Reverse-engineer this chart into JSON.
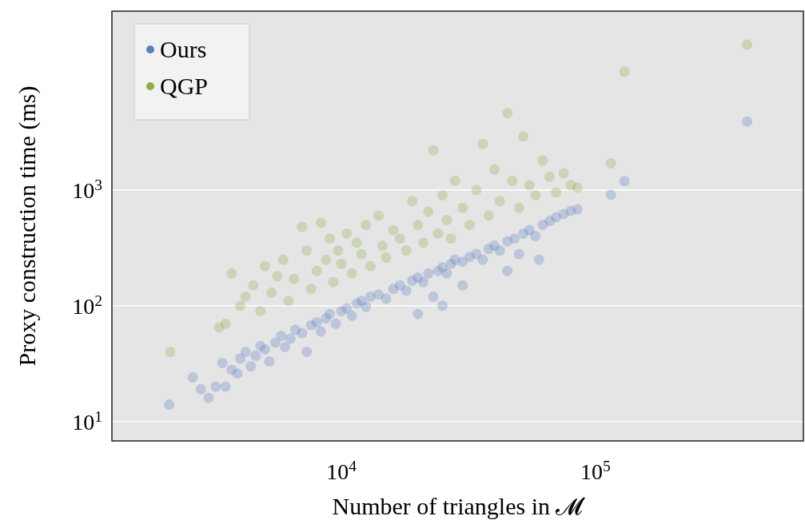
{
  "chart_data": {
    "type": "scatter",
    "xlabel": "Number of triangles in 𝓜",
    "ylabel": "Proxy construction time (ms)",
    "log": "xy",
    "grid": "y",
    "legend": "top left",
    "marker": "circle",
    "xlim": [
      1250,
      658000
    ],
    "ylim": [
      6.8,
      35000
    ],
    "xticks": [
      {
        "value": 10000,
        "label": "10$^{4}$"
      },
      {
        "value": 100000,
        "label": "10$^{5}$"
      }
    ],
    "yticks": [
      {
        "value": 10,
        "label": "10$^{1}$"
      },
      {
        "value": 100,
        "label": "10$^{2}$"
      },
      {
        "value": 1000,
        "label": "10$^{3}$"
      }
    ],
    "series": [
      {
        "name": "Ours",
        "color": "#5b7fbf",
        "x": [
          2100,
          2600,
          2800,
          3000,
          3200,
          3400,
          3500,
          3700,
          3900,
          4000,
          4200,
          4400,
          4600,
          4800,
          5000,
          5200,
          5500,
          5800,
          6000,
          6300,
          6600,
          7000,
          7300,
          7600,
          8000,
          8300,
          8700,
          9000,
          9500,
          10000,
          10500,
          11000,
          11500,
          12000,
          12500,
          13000,
          14000,
          15000,
          16000,
          17000,
          18000,
          19000,
          20000,
          21000,
          22000,
          23000,
          24000,
          25000,
          26000,
          27000,
          28000,
          30000,
          32000,
          34000,
          36000,
          38000,
          40000,
          42000,
          45000,
          48000,
          50000,
          52000,
          55000,
          58000,
          62000,
          66000,
          70000,
          75000,
          80000,
          85000,
          115000,
          130000,
          395000,
          20000,
          30000,
          45000,
          60000,
          25000
        ],
        "values": [
          14,
          24,
          19,
          16,
          20,
          32,
          20,
          28,
          26,
          35,
          40,
          30,
          37,
          45,
          42,
          33,
          48,
          55,
          44,
          52,
          62,
          58,
          40,
          68,
          72,
          60,
          78,
          85,
          70,
          90,
          95,
          82,
          105,
          110,
          98,
          120,
          125,
          115,
          140,
          150,
          135,
          165,
          175,
          160,
          190,
          120,
          200,
          215,
          190,
          230,
          250,
          240,
          265,
          280,
          250,
          310,
          330,
          300,
          360,
          380,
          280,
          420,
          450,
          400,
          500,
          540,
          580,
          620,
          660,
          680,
          910,
          1190,
          3900,
          85,
          150,
          200,
          250,
          100
        ]
      },
      {
        "name": "QGP",
        "color": "#8fad4a",
        "x": [
          2120,
          3300,
          3500,
          3700,
          4000,
          4200,
          4500,
          4800,
          5000,
          5300,
          5600,
          5900,
          6200,
          6500,
          7000,
          7300,
          7600,
          8000,
          8300,
          8700,
          9000,
          9300,
          9700,
          10000,
          10500,
          11000,
          11500,
          12000,
          12500,
          13000,
          14000,
          14500,
          15000,
          16000,
          17000,
          18000,
          19000,
          20000,
          21000,
          22000,
          23000,
          24000,
          25000,
          26000,
          27000,
          28000,
          30000,
          32000,
          34000,
          36000,
          38000,
          40000,
          42000,
          45000,
          47000,
          50000,
          52000,
          55000,
          58000,
          62000,
          66000,
          70000,
          75000,
          80000,
          85000,
          115000,
          130000,
          395000
        ],
        "values": [
          40,
          65,
          70,
          190,
          100,
          120,
          150,
          90,
          220,
          130,
          180,
          250,
          110,
          170,
          480,
          300,
          140,
          200,
          520,
          250,
          380,
          160,
          300,
          230,
          420,
          190,
          350,
          280,
          500,
          220,
          600,
          330,
          260,
          450,
          380,
          300,
          800,
          500,
          350,
          650,
          2200,
          420,
          900,
          550,
          380,
          1200,
          700,
          500,
          1000,
          2500,
          600,
          1500,
          800,
          4600,
          1200,
          700,
          2900,
          1100,
          900,
          1800,
          1300,
          950,
          1400,
          1100,
          1050,
          1700,
          10500,
          18000
        ]
      }
    ]
  }
}
